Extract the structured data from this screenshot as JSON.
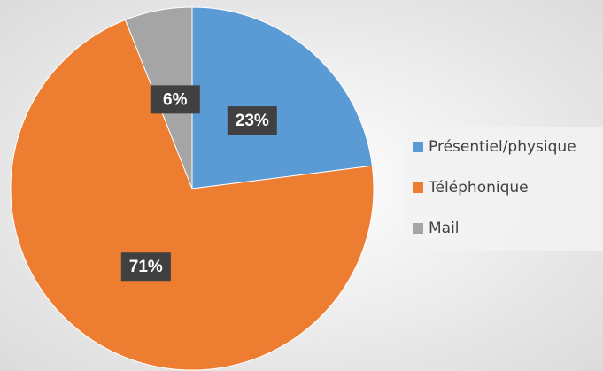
{
  "chart_data": {
    "type": "pie",
    "categories": [
      "Présentiel/physique",
      "Téléphonique",
      "Mail"
    ],
    "values": [
      23,
      71,
      6
    ],
    "value_labels": [
      "23%",
      "71%",
      "6%"
    ],
    "colors": [
      "#5b9bd5",
      "#ed7d31",
      "#a5a5a5"
    ],
    "legend": "right"
  }
}
